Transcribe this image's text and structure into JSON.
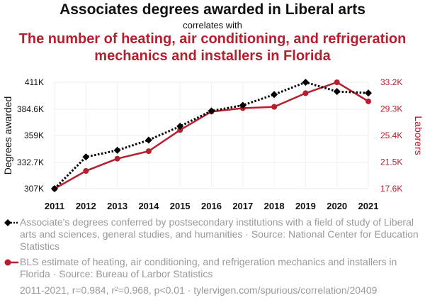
{
  "header": {
    "title": "Associates degrees awarded in Liberal arts",
    "subtitle": "correlates with",
    "title2": "The number of heating, air conditioning, and refrigeration mechanics and installers in Florida"
  },
  "legend": {
    "series1": "Associate's degrees conferred by postsecondary institutions with a field of study of Liberal arts and sciences, general studies, and humanities · Source: National Center for Education Statistics",
    "series2": "BLS estimate of heating, air conditioning, and refrigeration mechanics and installers in Florida · Source: Bureau of Larbor Statistics"
  },
  "footer": "2011-2021, r=0.984, r²=0.968, p<0.01 · tylervigen.com/spurious/correlation/20409",
  "colors": {
    "series1": "#000000",
    "series2": "#b51f2e"
  },
  "chart_data": {
    "type": "line",
    "x": [
      2011,
      2012,
      2013,
      2014,
      2015,
      2016,
      2017,
      2018,
      2019,
      2020,
      2021
    ],
    "series": [
      {
        "name": "Associates degrees awarded in Liberal arts",
        "axis": "left",
        "style": "dotted",
        "marker": "diamond",
        "values": [
          307000,
          338000,
          344500,
          354500,
          368000,
          383000,
          388500,
          399000,
          411000,
          402000,
          400500
        ]
      },
      {
        "name": "Heating, air conditioning, and refrigeration mechanics and installers in Florida",
        "axis": "right",
        "style": "solid",
        "marker": "circle",
        "values": [
          17600,
          20200,
          22000,
          23100,
          26200,
          28900,
          29400,
          29600,
          31600,
          33200,
          30400
        ]
      }
    ],
    "y_left": {
      "label": "Degrees awarded",
      "ticks": [
        307000,
        332700,
        359000,
        384600,
        411000
      ],
      "tick_labels": [
        "307K",
        "332.7K",
        "359K",
        "384.6K",
        "411K"
      ],
      "range": [
        307000,
        411000
      ]
    },
    "y_right": {
      "label": "Laborers",
      "ticks": [
        17600,
        21500,
        25400,
        29300,
        33200
      ],
      "tick_labels": [
        "17.6K",
        "21.5K",
        "25.4K",
        "29.3K",
        "33.2K"
      ],
      "range": [
        17600,
        33200
      ]
    },
    "x_tick_labels": [
      "2011",
      "2012",
      "2013",
      "2014",
      "2015",
      "2016",
      "2017",
      "2018",
      "2019",
      "2020",
      "2021"
    ],
    "grid": true
  }
}
